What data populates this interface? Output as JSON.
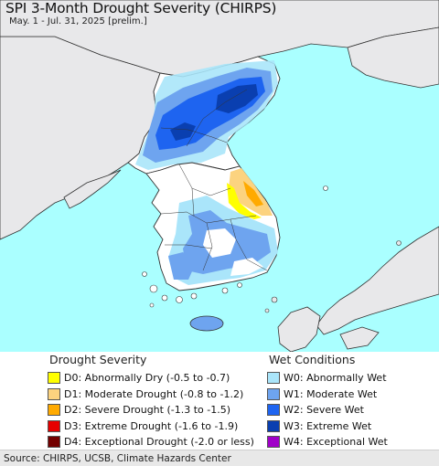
{
  "title": "SPI 3-Month Drought Severity (CHIRPS)",
  "subtitle": "May. 1 - Jul. 31, 2025 [prelim.]",
  "colors": {
    "sea": "#aaffff",
    "land_outside": "#e8e8ea",
    "land_normal": "#ffffff",
    "border": "#333333"
  },
  "legend": {
    "drought_heading": "Drought Severity",
    "drought_items": [
      {
        "label": "D0: Abnormally Dry (-0.5 to -0.7)",
        "color": "#ffff00"
      },
      {
        "label": "D1: Moderate Drought (-0.8 to -1.2)",
        "color": "#fcd37f"
      },
      {
        "label": "D2: Severe Drought (-1.3 to -1.5)",
        "color": "#ffaa00"
      },
      {
        "label": "D3: Extreme Drought (-1.6 to -1.9)",
        "color": "#e60000"
      },
      {
        "label": "D4: Exceptional Drought (-2.0 or less)",
        "color": "#730000"
      }
    ],
    "wet_heading": "Wet Conditions",
    "wet_items": [
      {
        "label": "W0: Abnormally Wet",
        "color": "#aae5fa"
      },
      {
        "label": "W1: Moderate Wet",
        "color": "#6ea4ef"
      },
      {
        "label": "W2: Severe Wet",
        "color": "#1e64f0"
      },
      {
        "label": "W3: Extreme Wet",
        "color": "#0a3fb0"
      },
      {
        "label": "W4: Exceptional Wet",
        "color": "#a000c8"
      }
    ]
  },
  "source": "Source: CHIRPS, UCSB, Climate Hazards Center"
}
